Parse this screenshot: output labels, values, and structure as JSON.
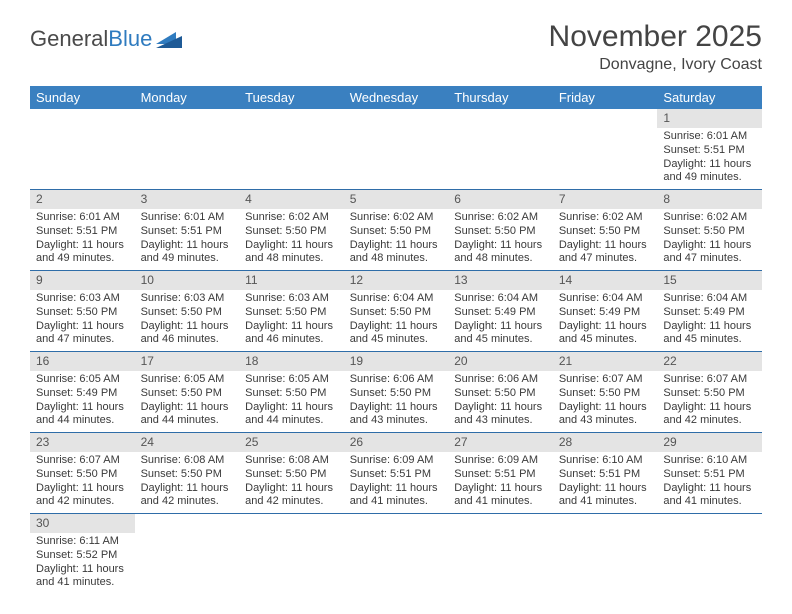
{
  "logo": {
    "part1": "General",
    "part2": "Blue"
  },
  "title": "November 2025",
  "location": "Donvagne, Ivory Coast",
  "colors": {
    "header_bg": "#3a80c0",
    "header_text": "#ffffff",
    "daynum_bg": "#e4e4e4",
    "cell_border": "#2f6da8",
    "text": "#3a3a3a"
  },
  "weekdays": [
    "Sunday",
    "Monday",
    "Tuesday",
    "Wednesday",
    "Thursday",
    "Friday",
    "Saturday"
  ],
  "leading_blanks": 6,
  "days": [
    {
      "n": 1,
      "sunrise": "6:01 AM",
      "sunset": "5:51 PM",
      "daylight": "11 hours and 49 minutes."
    },
    {
      "n": 2,
      "sunrise": "6:01 AM",
      "sunset": "5:51 PM",
      "daylight": "11 hours and 49 minutes."
    },
    {
      "n": 3,
      "sunrise": "6:01 AM",
      "sunset": "5:51 PM",
      "daylight": "11 hours and 49 minutes."
    },
    {
      "n": 4,
      "sunrise": "6:02 AM",
      "sunset": "5:50 PM",
      "daylight": "11 hours and 48 minutes."
    },
    {
      "n": 5,
      "sunrise": "6:02 AM",
      "sunset": "5:50 PM",
      "daylight": "11 hours and 48 minutes."
    },
    {
      "n": 6,
      "sunrise": "6:02 AM",
      "sunset": "5:50 PM",
      "daylight": "11 hours and 48 minutes."
    },
    {
      "n": 7,
      "sunrise": "6:02 AM",
      "sunset": "5:50 PM",
      "daylight": "11 hours and 47 minutes."
    },
    {
      "n": 8,
      "sunrise": "6:02 AM",
      "sunset": "5:50 PM",
      "daylight": "11 hours and 47 minutes."
    },
    {
      "n": 9,
      "sunrise": "6:03 AM",
      "sunset": "5:50 PM",
      "daylight": "11 hours and 47 minutes."
    },
    {
      "n": 10,
      "sunrise": "6:03 AM",
      "sunset": "5:50 PM",
      "daylight": "11 hours and 46 minutes."
    },
    {
      "n": 11,
      "sunrise": "6:03 AM",
      "sunset": "5:50 PM",
      "daylight": "11 hours and 46 minutes."
    },
    {
      "n": 12,
      "sunrise": "6:04 AM",
      "sunset": "5:50 PM",
      "daylight": "11 hours and 45 minutes."
    },
    {
      "n": 13,
      "sunrise": "6:04 AM",
      "sunset": "5:49 PM",
      "daylight": "11 hours and 45 minutes."
    },
    {
      "n": 14,
      "sunrise": "6:04 AM",
      "sunset": "5:49 PM",
      "daylight": "11 hours and 45 minutes."
    },
    {
      "n": 15,
      "sunrise": "6:04 AM",
      "sunset": "5:49 PM",
      "daylight": "11 hours and 45 minutes."
    },
    {
      "n": 16,
      "sunrise": "6:05 AM",
      "sunset": "5:49 PM",
      "daylight": "11 hours and 44 minutes."
    },
    {
      "n": 17,
      "sunrise": "6:05 AM",
      "sunset": "5:50 PM",
      "daylight": "11 hours and 44 minutes."
    },
    {
      "n": 18,
      "sunrise": "6:05 AM",
      "sunset": "5:50 PM",
      "daylight": "11 hours and 44 minutes."
    },
    {
      "n": 19,
      "sunrise": "6:06 AM",
      "sunset": "5:50 PM",
      "daylight": "11 hours and 43 minutes."
    },
    {
      "n": 20,
      "sunrise": "6:06 AM",
      "sunset": "5:50 PM",
      "daylight": "11 hours and 43 minutes."
    },
    {
      "n": 21,
      "sunrise": "6:07 AM",
      "sunset": "5:50 PM",
      "daylight": "11 hours and 43 minutes."
    },
    {
      "n": 22,
      "sunrise": "6:07 AM",
      "sunset": "5:50 PM",
      "daylight": "11 hours and 42 minutes."
    },
    {
      "n": 23,
      "sunrise": "6:07 AM",
      "sunset": "5:50 PM",
      "daylight": "11 hours and 42 minutes."
    },
    {
      "n": 24,
      "sunrise": "6:08 AM",
      "sunset": "5:50 PM",
      "daylight": "11 hours and 42 minutes."
    },
    {
      "n": 25,
      "sunrise": "6:08 AM",
      "sunset": "5:50 PM",
      "daylight": "11 hours and 42 minutes."
    },
    {
      "n": 26,
      "sunrise": "6:09 AM",
      "sunset": "5:51 PM",
      "daylight": "11 hours and 41 minutes."
    },
    {
      "n": 27,
      "sunrise": "6:09 AM",
      "sunset": "5:51 PM",
      "daylight": "11 hours and 41 minutes."
    },
    {
      "n": 28,
      "sunrise": "6:10 AM",
      "sunset": "5:51 PM",
      "daylight": "11 hours and 41 minutes."
    },
    {
      "n": 29,
      "sunrise": "6:10 AM",
      "sunset": "5:51 PM",
      "daylight": "11 hours and 41 minutes."
    },
    {
      "n": 30,
      "sunrise": "6:11 AM",
      "sunset": "5:52 PM",
      "daylight": "11 hours and 41 minutes."
    }
  ],
  "labels": {
    "sunrise": "Sunrise:",
    "sunset": "Sunset:",
    "daylight": "Daylight:"
  }
}
